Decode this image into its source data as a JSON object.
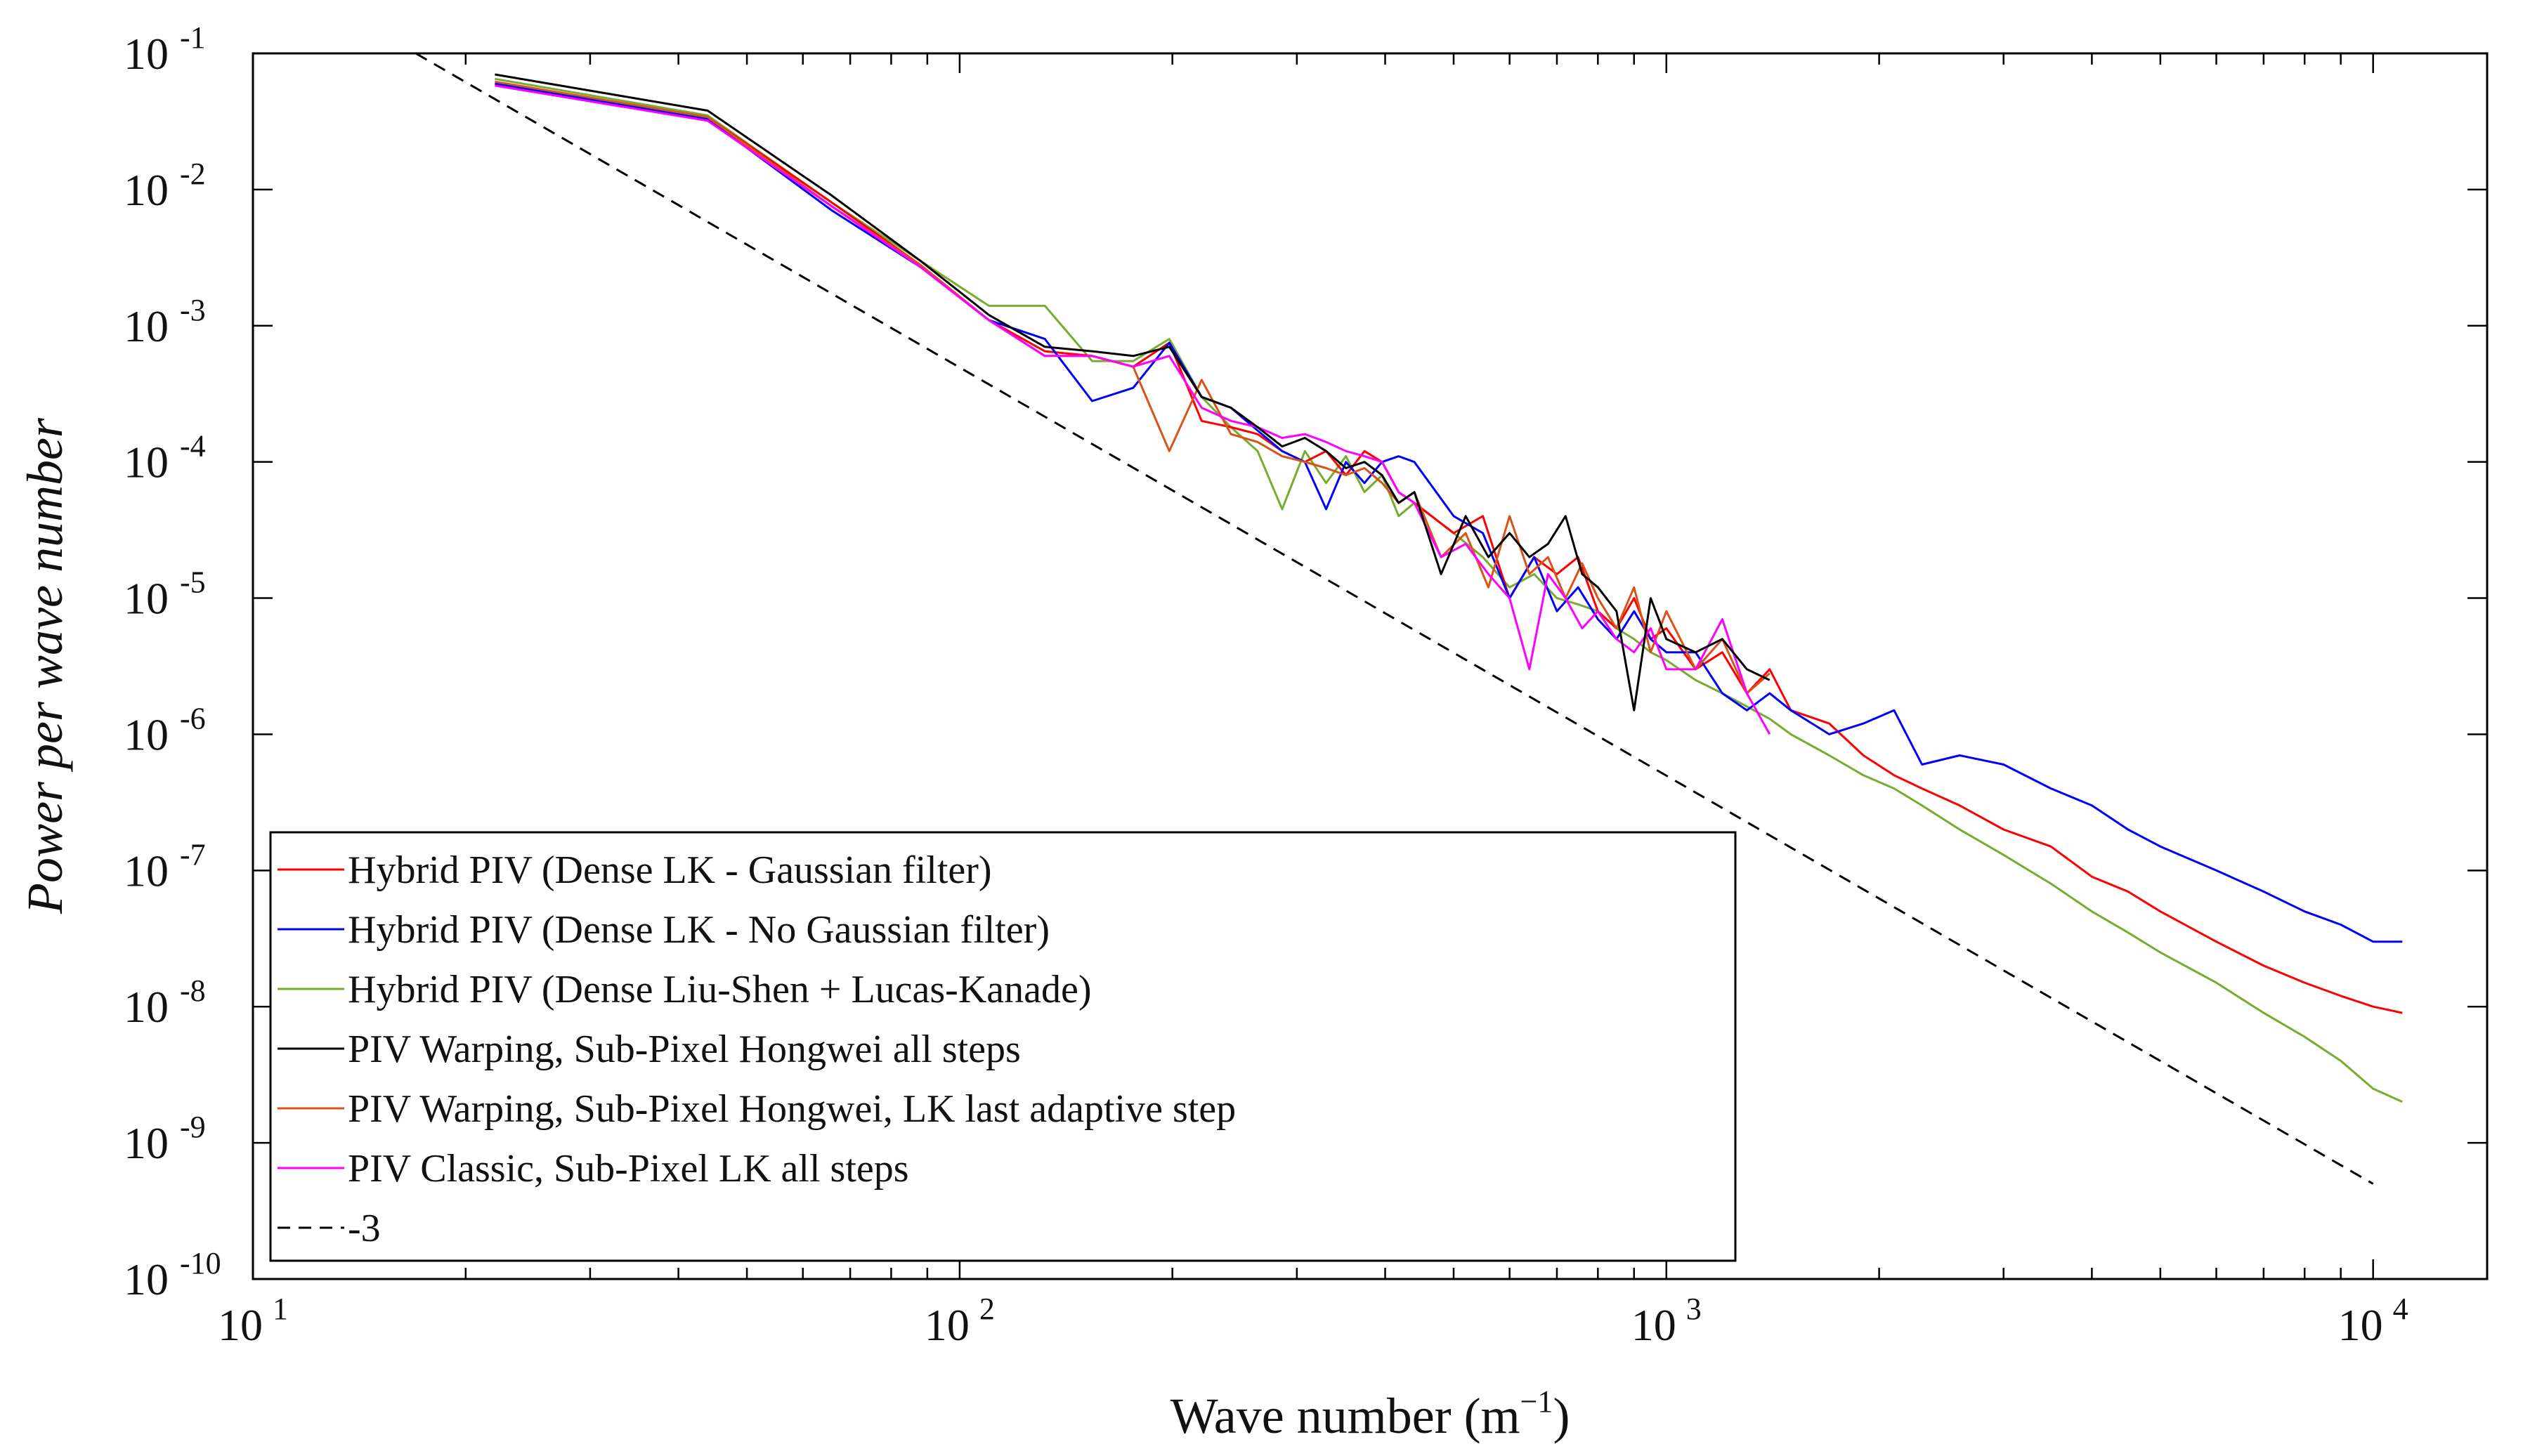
{
  "chart_data": {
    "type": "line",
    "xlabel": "Wave number (m",
    "xlabel_exp": "−1",
    "xlabel_close": ")",
    "ylabel": "Power per wave number",
    "x_scale": "log",
    "y_scale": "log",
    "xlim": [
      10,
      14500
    ],
    "ylim": [
      1e-10,
      0.1
    ],
    "grid": false,
    "legend_position": "bottom-left",
    "x_ticks": [
      {
        "value": 10,
        "base": "10",
        "exp": "1"
      },
      {
        "value": 100,
        "base": "10",
        "exp": "2"
      },
      {
        "value": 1000,
        "base": "10",
        "exp": "3"
      },
      {
        "value": 10000,
        "base": "10",
        "exp": "4"
      }
    ],
    "y_ticks": [
      {
        "value": 0.1,
        "base": "10",
        "exp": "-1"
      },
      {
        "value": 0.01,
        "base": "10",
        "exp": "-2"
      },
      {
        "value": 0.001,
        "base": "10",
        "exp": "-3"
      },
      {
        "value": 0.0001,
        "base": "10",
        "exp": "-4"
      },
      {
        "value": 1e-05,
        "base": "10",
        "exp": "-5"
      },
      {
        "value": 1e-06,
        "base": "10",
        "exp": "-6"
      },
      {
        "value": 1e-07,
        "base": "10",
        "exp": "-7"
      },
      {
        "value": 1e-08,
        "base": "10",
        "exp": "-8"
      },
      {
        "value": 1e-09,
        "base": "10",
        "exp": "-9"
      },
      {
        "value": 1e-10,
        "base": "10",
        "exp": "-10"
      }
    ],
    "reference_line": {
      "name": "-3",
      "style": "dashed",
      "color": "#000000",
      "x": [
        17,
        10000
      ],
      "y": [
        0.1,
        5e-10
      ]
    },
    "series": [
      {
        "name": "Hybrid PIV (Dense LK - Gaussian filter)",
        "color": "#ff0000",
        "x": [
          22,
          44,
          66,
          88,
          110,
          132,
          154,
          176,
          198,
          220,
          242,
          264,
          286,
          308,
          330,
          352,
          374,
          396,
          418,
          440,
          500,
          550,
          600,
          650,
          700,
          750,
          800,
          850,
          900,
          950,
          1000,
          1100,
          1200,
          1300,
          1400,
          1500,
          1700,
          1900,
          2100,
          2300,
          2600,
          3000,
          3500,
          4000,
          4500,
          5000,
          6000,
          7000,
          8000,
          9000,
          10000,
          11000
        ],
        "y": [
          0.06,
          0.034,
          0.008,
          0.0028,
          0.0011,
          0.00065,
          0.0006,
          0.0005,
          0.00075,
          0.0002,
          0.00018,
          0.00016,
          0.00012,
          0.0001,
          0.00012,
          8e-05,
          0.00012,
          0.0001,
          6e-05,
          5e-05,
          3e-05,
          4e-05,
          1e-05,
          2e-05,
          1.5e-05,
          2e-05,
          8e-06,
          6e-06,
          1e-05,
          5e-06,
          6e-06,
          3e-06,
          4e-06,
          2e-06,
          3e-06,
          1.5e-06,
          1.2e-06,
          7e-07,
          5e-07,
          4e-07,
          3e-07,
          2e-07,
          1.5e-07,
          9e-08,
          7e-08,
          5e-08,
          3e-08,
          2e-08,
          1.5e-08,
          1.2e-08,
          1e-08,
          9e-09
        ]
      },
      {
        "name": "Hybrid PIV (Dense LK - No Gaussian filter)",
        "color": "#0000ff",
        "x": [
          22,
          44,
          66,
          88,
          110,
          132,
          154,
          176,
          198,
          220,
          242,
          264,
          286,
          308,
          330,
          352,
          374,
          396,
          418,
          440,
          500,
          550,
          600,
          650,
          700,
          750,
          800,
          850,
          900,
          950,
          1000,
          1100,
          1200,
          1300,
          1400,
          1500,
          1700,
          1900,
          2100,
          2300,
          2600,
          3000,
          3500,
          4000,
          4500,
          5000,
          6000,
          7000,
          8000,
          9000,
          10000,
          11000
        ],
        "y": [
          0.06,
          0.033,
          0.007,
          0.0027,
          0.0011,
          0.0008,
          0.00028,
          0.00035,
          0.00075,
          0.0003,
          0.00025,
          0.00017,
          0.00012,
          0.0001,
          4.5e-05,
          0.0001,
          7e-05,
          0.0001,
          0.00011,
          0.0001,
          4e-05,
          3e-05,
          1e-05,
          2e-05,
          8e-06,
          1.2e-05,
          7e-06,
          5e-06,
          8e-06,
          5e-06,
          4e-06,
          4e-06,
          2e-06,
          1.5e-06,
          2e-06,
          1.5e-06,
          1e-06,
          1.2e-06,
          1.5e-06,
          6e-07,
          7e-07,
          6e-07,
          4e-07,
          3e-07,
          2e-07,
          1.5e-07,
          1e-07,
          7e-08,
          5e-08,
          4e-08,
          3e-08,
          3e-08
        ]
      },
      {
        "name": "Hybrid PIV (Dense Liu-Shen + Lucas-Kanade)",
        "color": "#77ac30",
        "x": [
          22,
          44,
          66,
          88,
          110,
          132,
          154,
          176,
          198,
          220,
          242,
          264,
          286,
          308,
          330,
          352,
          374,
          396,
          418,
          440,
          500,
          550,
          600,
          650,
          700,
          750,
          800,
          850,
          900,
          950,
          1000,
          1100,
          1200,
          1300,
          1400,
          1500,
          1700,
          1900,
          2100,
          2300,
          2600,
          3000,
          3500,
          4000,
          4500,
          5000,
          6000,
          7000,
          8000,
          9000,
          10000,
          11000
        ],
        "y": [
          0.065,
          0.035,
          0.008,
          0.003,
          0.0014,
          0.0014,
          0.00055,
          0.00055,
          0.0008,
          0.0003,
          0.00018,
          0.00012,
          4.5e-05,
          0.00012,
          7e-05,
          0.00011,
          6e-05,
          8e-05,
          4e-05,
          5e-05,
          3e-05,
          2e-05,
          1.2e-05,
          1.5e-05,
          1e-05,
          9e-06,
          8e-06,
          6e-06,
          5e-06,
          4e-06,
          3.5e-06,
          2.5e-06,
          2e-06,
          1.6e-06,
          1.3e-06,
          1e-06,
          7e-07,
          5e-07,
          4e-07,
          3e-07,
          2e-07,
          1.3e-07,
          8e-08,
          5e-08,
          3.5e-08,
          2.5e-08,
          1.5e-08,
          9e-09,
          6e-09,
          4e-09,
          2.5e-09,
          2e-09
        ]
      },
      {
        "name": "PIV Warping, Sub-Pixel Hongwei all steps",
        "color": "#000000",
        "x": [
          22,
          44,
          66,
          88,
          110,
          132,
          154,
          176,
          198,
          220,
          242,
          264,
          286,
          308,
          330,
          352,
          374,
          396,
          418,
          440,
          480,
          520,
          560,
          600,
          640,
          680,
          720,
          760,
          800,
          850,
          900,
          950,
          1000,
          1100,
          1200,
          1300,
          1400
        ],
        "y": [
          0.07,
          0.038,
          0.009,
          0.003,
          0.0012,
          0.0007,
          0.00065,
          0.0006,
          0.0007,
          0.0003,
          0.00025,
          0.00018,
          0.00013,
          0.00015,
          0.00012,
          9e-05,
          0.0001,
          8e-05,
          5e-05,
          6e-05,
          1.5e-05,
          4e-05,
          2e-05,
          3e-05,
          2e-05,
          2.5e-05,
          4e-05,
          1.5e-05,
          1.2e-05,
          8e-06,
          1.5e-06,
          1e-05,
          5e-06,
          4e-06,
          5e-06,
          3e-06,
          2.5e-06
        ]
      },
      {
        "name": "PIV Warping, Sub-Pixel Hongwei, LK last adaptive step",
        "color": "#d95319",
        "x": [
          22,
          44,
          66,
          88,
          110,
          132,
          154,
          176,
          198,
          220,
          242,
          264,
          286,
          308,
          330,
          352,
          374,
          396,
          418,
          440,
          480,
          520,
          560,
          600,
          640,
          680,
          720,
          760,
          800,
          850,
          900,
          950,
          1000,
          1100,
          1200,
          1300,
          1400
        ],
        "y": [
          0.062,
          0.034,
          0.0075,
          0.0028,
          0.0011,
          0.0006,
          0.0006,
          0.0005,
          0.00012,
          0.0004,
          0.00016,
          0.00014,
          0.00011,
          0.0001,
          9e-05,
          8e-05,
          9e-05,
          7e-05,
          5e-05,
          6e-05,
          2e-05,
          3e-05,
          1.2e-05,
          4e-05,
          1.5e-05,
          2e-05,
          1e-05,
          1.8e-05,
          1e-05,
          6e-06,
          1.2e-05,
          4e-06,
          8e-06,
          3e-06,
          5e-06,
          2e-06,
          2.8e-06
        ]
      },
      {
        "name": "PIV Classic, Sub-Pixel LK all steps",
        "color": "#ff00ff",
        "x": [
          22,
          44,
          66,
          88,
          110,
          132,
          154,
          176,
          198,
          220,
          242,
          264,
          286,
          308,
          330,
          352,
          374,
          396,
          418,
          440,
          480,
          520,
          560,
          600,
          640,
          680,
          720,
          760,
          800,
          850,
          900,
          950,
          1000,
          1100,
          1200,
          1300,
          1400
        ],
        "y": [
          0.058,
          0.032,
          0.0075,
          0.0027,
          0.0011,
          0.0006,
          0.0006,
          0.0005,
          0.0006,
          0.00025,
          0.0002,
          0.00018,
          0.00015,
          0.00016,
          0.00014,
          0.00012,
          0.00011,
          0.0001,
          6e-05,
          5e-05,
          2e-05,
          2.5e-05,
          1.5e-05,
          1e-05,
          3e-06,
          1.5e-05,
          1e-05,
          6e-06,
          8e-06,
          5e-06,
          4e-06,
          6e-06,
          3e-06,
          3e-06,
          7e-06,
          2e-06,
          1e-06
        ]
      }
    ]
  }
}
